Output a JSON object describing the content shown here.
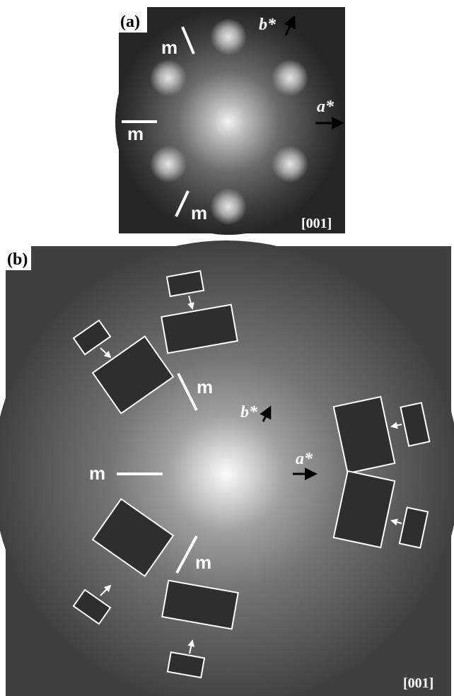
{
  "panels": [
    {
      "label": "(a)",
      "zone_axis": "[001]",
      "a_star": "a*",
      "b_star": "b*",
      "mirror_labels": [
        "m",
        "m",
        "m"
      ]
    },
    {
      "label": "(b)",
      "zone_axis": "[001]",
      "a_star": "a*",
      "b_star": "b*",
      "mirror_labels": [
        "m",
        "m",
        "m"
      ]
    }
  ]
}
